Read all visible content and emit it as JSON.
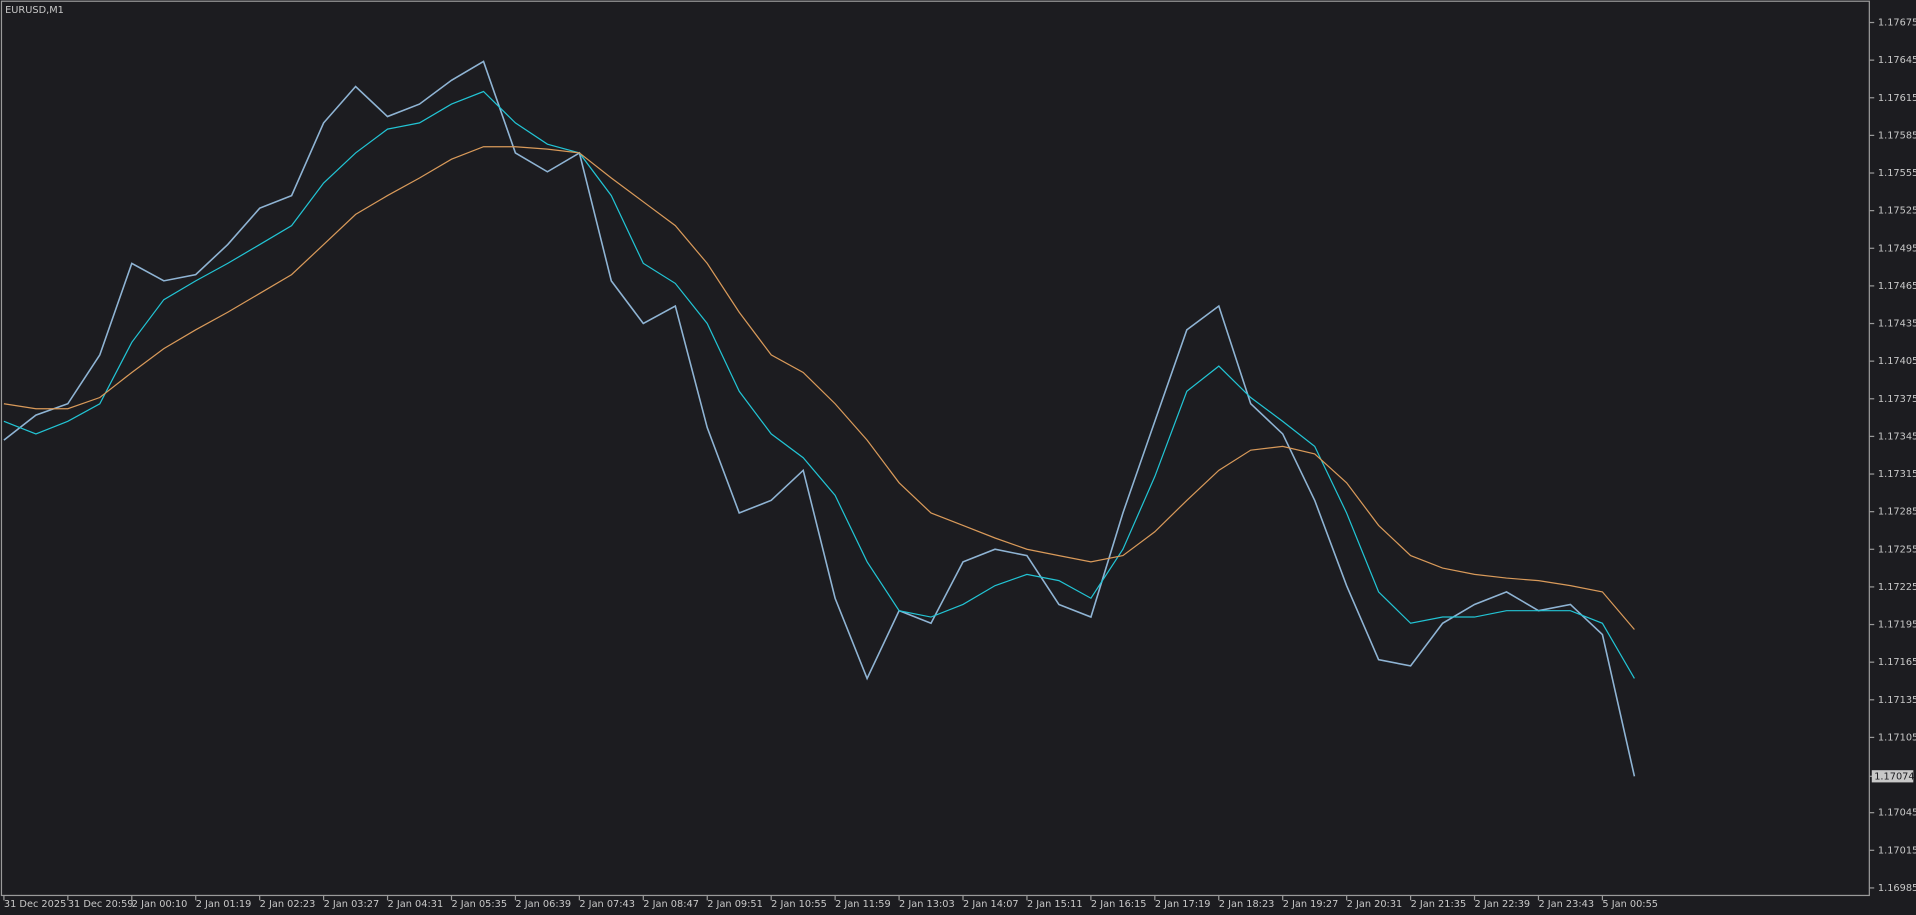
{
  "chart_data": {
    "type": "line",
    "title": "EURUSD,M1",
    "categories": [
      "31 Dec 2025",
      null,
      "31 Dec 20:59",
      null,
      "2 Jan 00:10",
      null,
      "2 Jan 01:19",
      null,
      "2 Jan 02:23",
      null,
      "2 Jan 03:27",
      null,
      "2 Jan 04:31",
      null,
      "2 Jan 05:35",
      null,
      "2 Jan 06:39",
      null,
      "2 Jan 07:43",
      null,
      "2 Jan 08:47",
      null,
      "2 Jan 09:51",
      null,
      "2 Jan 10:55",
      null,
      "2 Jan 11:59",
      null,
      "2 Jan 13:03",
      null,
      "2 Jan 14:07",
      null,
      "2 Jan 15:11",
      null,
      "2 Jan 16:15",
      null,
      "2 Jan 17:19",
      null,
      "2 Jan 18:23",
      null,
      "2 Jan 19:27",
      null,
      "2 Jan 20:31",
      null,
      "2 Jan 21:35",
      null,
      "2 Jan 22:39",
      null,
      "2 Jan 23:43",
      null,
      "5 Jan 00:55",
      null
    ],
    "series": [
      {
        "color": "#8fb4d4",
        "values": [
          1.17342,
          1.17362,
          1.17371,
          1.1741,
          1.17483,
          1.17469,
          1.17474,
          1.17498,
          1.17527,
          1.17537,
          1.17595,
          1.17624,
          1.176,
          1.1761,
          1.17629,
          1.17644,
          1.17571,
          1.17556,
          1.17571,
          1.17469,
          1.17435,
          1.17449,
          1.17352,
          1.17284,
          1.17294,
          1.17318,
          1.17216,
          1.17152,
          1.17206,
          1.17196,
          1.17245,
          1.17255,
          1.1725,
          1.17211,
          1.17201,
          1.17284,
          1.17357,
          1.1743,
          1.17449,
          1.17371,
          1.17347,
          1.17294,
          1.17226,
          1.17167,
          1.17162,
          1.17196,
          1.17211,
          1.17221,
          1.17206,
          1.17211,
          1.17187,
          1.17074
        ]
      },
      {
        "color": "#22c4d4",
        "values": [
          1.17357,
          1.17347,
          1.17357,
          1.17371,
          1.1742,
          1.17454,
          1.17469,
          1.17483,
          1.17498,
          1.17513,
          1.17547,
          1.17571,
          1.1759,
          1.17595,
          1.1761,
          1.1762,
          1.17595,
          1.17578,
          1.17571,
          1.17537,
          1.17483,
          1.17467,
          1.17435,
          1.17381,
          1.17347,
          1.17328,
          1.17298,
          1.17245,
          1.17206,
          1.17201,
          1.17211,
          1.17226,
          1.17235,
          1.1723,
          1.17216,
          1.17255,
          1.17313,
          1.17381,
          1.17401,
          1.17376,
          1.17357,
          1.17337,
          1.17284,
          1.17221,
          1.17196,
          1.17201,
          1.17201,
          1.17206,
          1.17206,
          1.17206,
          1.17196,
          1.17152
        ]
      },
      {
        "color": "#d99a5a",
        "values": [
          1.17371,
          1.17367,
          1.17367,
          1.17376,
          1.17396,
          1.17415,
          1.1743,
          1.17444,
          1.17459,
          1.17474,
          1.17498,
          1.17522,
          1.17537,
          1.17551,
          1.17566,
          1.17576,
          1.17576,
          1.17574,
          1.17571,
          1.17551,
          1.17532,
          1.17513,
          1.17483,
          1.17444,
          1.1741,
          1.17396,
          1.17371,
          1.17342,
          1.17308,
          1.17284,
          1.17274,
          1.17264,
          1.17255,
          1.1725,
          1.17245,
          1.1725,
          1.17269,
          1.17294,
          1.17318,
          1.17334,
          1.17337,
          1.17331,
          1.17308,
          1.17274,
          1.1725,
          1.1724,
          1.17235,
          1.17232,
          1.1723,
          1.17226,
          1.17221,
          1.17191
        ]
      }
    ],
    "ylim": [
      1.16979,
      1.17691
    ],
    "yticks": [
      1.17675,
      1.17645,
      1.17615,
      1.17585,
      1.17555,
      1.17525,
      1.17495,
      1.17465,
      1.17435,
      1.17405,
      1.17375,
      1.17345,
      1.17315,
      1.17285,
      1.17255,
      1.17225,
      1.17195,
      1.17165,
      1.17135,
      1.17105,
      1.17045,
      1.17015,
      1.16985
    ],
    "current_price": 1.17074
  }
}
